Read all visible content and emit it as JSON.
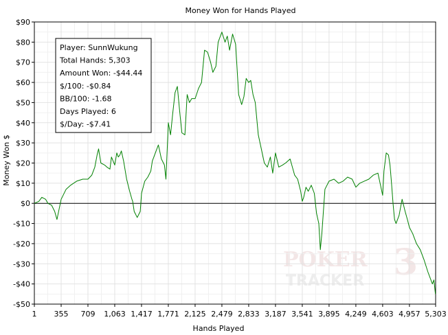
{
  "chart_data": {
    "type": "line",
    "title": "Money Won for Hands Played",
    "xlabel": "Hands Played",
    "ylabel": "Money Won $",
    "xlim": [
      1,
      5303
    ],
    "ylim": [
      -50,
      90
    ],
    "x_ticks": [
      1,
      355,
      709,
      1063,
      1417,
      1771,
      2125,
      2479,
      2833,
      3187,
      3541,
      3895,
      4249,
      4603,
      4957,
      5303
    ],
    "x_tick_labels": [
      "1",
      "355",
      "709",
      "1,063",
      "1,417",
      "1,771",
      "2,125",
      "2,479",
      "2,833",
      "3,187",
      "3,541",
      "3,895",
      "4,249",
      "4,603",
      "4,957",
      "5,303"
    ],
    "y_ticks": [
      90,
      80,
      70,
      60,
      50,
      40,
      30,
      20,
      10,
      0,
      -10,
      -20,
      -30,
      -40,
      -50
    ],
    "y_tick_labels": [
      "$90",
      "$80",
      "$70",
      "$60",
      "$50",
      "$40",
      "$30",
      "$20",
      "$10",
      "$0",
      "-$10",
      "-$20",
      "-$30",
      "-$40",
      "-$50"
    ],
    "grid": true,
    "line_color": "#008000",
    "series": [
      {
        "x": [
          1,
          60,
          100,
          150,
          180,
          230,
          270,
          300,
          355,
          420,
          480,
          560,
          640,
          709,
          760,
          800,
          830,
          850,
          880,
          930,
          960,
          1000,
          1020,
          1063,
          1090,
          1110,
          1130,
          1150,
          1180,
          1220,
          1260,
          1290,
          1300,
          1320,
          1360,
          1400,
          1417,
          1460,
          1500,
          1540,
          1560,
          1600,
          1640,
          1680,
          1720,
          1740,
          1771,
          1800,
          1830,
          1860,
          1890,
          1920,
          1950,
          1990,
          2020,
          2050,
          2080,
          2125,
          2170,
          2210,
          2250,
          2290,
          2330,
          2360,
          2400,
          2430,
          2479,
          2520,
          2550,
          2580,
          2620,
          2660,
          2700,
          2740,
          2770,
          2800,
          2833,
          2860,
          2890,
          2920,
          2960,
          3000,
          3040,
          3080,
          3120,
          3150,
          3187,
          3230,
          3280,
          3320,
          3380,
          3440,
          3480,
          3520,
          3541,
          3560,
          3590,
          3620,
          3660,
          3700,
          3730,
          3760,
          3780,
          3800,
          3840,
          3895,
          3960,
          4020,
          4080,
          4140,
          4200,
          4249,
          4300,
          4360,
          4420,
          4480,
          4540,
          4580,
          4603,
          4620,
          4650,
          4680,
          4700,
          4720,
          4740,
          4760,
          4780,
          4820,
          4860,
          4900,
          4930,
          4957,
          5000,
          5050,
          5100,
          5150,
          5200,
          5230,
          5260,
          5280,
          5300
        ],
        "y": [
          0,
          1,
          3,
          2,
          0,
          -1,
          -4,
          -8,
          2,
          7,
          9,
          11,
          12,
          12,
          14,
          18,
          24,
          27,
          20,
          19,
          18,
          17,
          23,
          19,
          25,
          23,
          24,
          26,
          21,
          12,
          6,
          2,
          1,
          -4,
          -7,
          -4,
          5,
          11,
          13,
          16,
          21,
          25,
          29,
          22,
          19,
          12,
          40,
          34,
          45,
          55,
          58,
          46,
          35,
          34,
          54,
          50,
          52,
          52,
          57,
          60,
          76,
          75,
          70,
          65,
          68,
          80,
          85,
          80,
          83,
          76,
          84,
          79,
          54,
          49,
          53,
          62,
          60,
          61,
          54,
          50,
          34,
          27,
          20,
          18,
          23,
          15,
          25,
          18,
          19,
          20,
          22,
          14,
          12,
          6,
          1,
          3,
          8,
          6,
          9,
          5,
          -5,
          -10,
          -23,
          -15,
          7,
          11,
          12,
          10,
          11,
          13,
          12,
          8,
          10,
          11,
          12,
          14,
          15,
          8,
          4,
          16,
          25,
          24,
          19,
          10,
          0,
          -8,
          -10,
          -6,
          2,
          -4,
          -8,
          -12,
          -15,
          -20,
          -23,
          -28,
          -34,
          -37,
          -40,
          -38,
          -45
        ]
      }
    ],
    "info_box": {
      "player": "Player: SunnWukung",
      "total_hands": "Total Hands: 5,303",
      "amount_won": "Amount Won: -$44.44",
      "per_100": "$/100: -$0.84",
      "bb_per_100": "BB/100: -1.68",
      "days_played": "Days Played: 6",
      "per_day": "$/Day: -$7.41"
    },
    "watermark": {
      "line1": "POKER",
      "digit": "3",
      "line2": "TRACKER"
    }
  }
}
